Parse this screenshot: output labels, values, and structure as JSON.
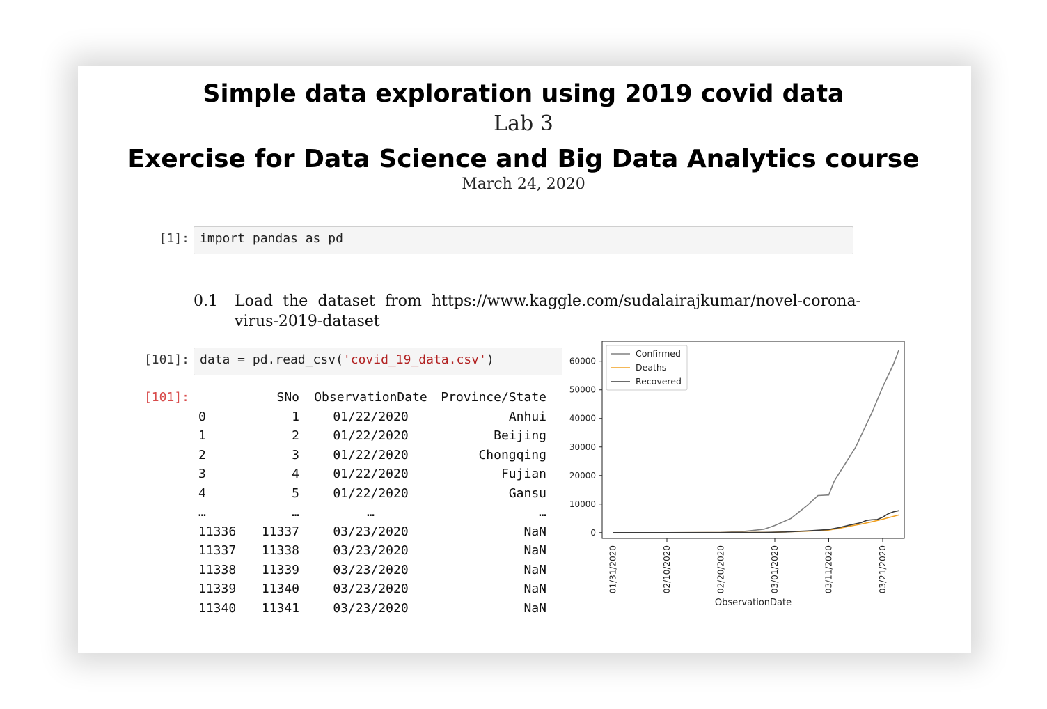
{
  "header": {
    "title": "Simple data exploration using 2019 covid data",
    "subtitle": "Lab 3",
    "course": "Exercise for Data Science and Big Data Analytics course",
    "date": "March 24, 2020"
  },
  "cell1": {
    "prompt": "[1]:",
    "code": "import pandas as pd"
  },
  "section": {
    "number": "0.1",
    "text": "Load the dataset from https://www.kaggle.com/sudalairajkumar/novel-corona-virus-2019-dataset"
  },
  "cell2": {
    "prompt": "[101]:",
    "code_prefix": "data = pd.read_csv(",
    "code_string": "'covid_19_data.csv'",
    "code_suffix": ")",
    "out_prompt": "[101]:"
  },
  "dataframe": {
    "columns": [
      "SNo",
      "ObservationDate",
      "Province/State"
    ],
    "rows": [
      {
        "idx": "0",
        "sno": "1",
        "date": "01/22/2020",
        "prov": "Anhui"
      },
      {
        "idx": "1",
        "sno": "2",
        "date": "01/22/2020",
        "prov": "Beijing"
      },
      {
        "idx": "2",
        "sno": "3",
        "date": "01/22/2020",
        "prov": "Chongqing"
      },
      {
        "idx": "3",
        "sno": "4",
        "date": "01/22/2020",
        "prov": "Fujian"
      },
      {
        "idx": "4",
        "sno": "5",
        "date": "01/22/2020",
        "prov": "Gansu"
      },
      {
        "idx": "…",
        "sno": "…",
        "date": "…",
        "prov": "…"
      },
      {
        "idx": "11336",
        "sno": "11337",
        "date": "03/23/2020",
        "prov": "NaN"
      },
      {
        "idx": "11337",
        "sno": "11338",
        "date": "03/23/2020",
        "prov": "NaN"
      },
      {
        "idx": "11338",
        "sno": "11339",
        "date": "03/23/2020",
        "prov": "NaN"
      },
      {
        "idx": "11339",
        "sno": "11340",
        "date": "03/23/2020",
        "prov": "NaN"
      },
      {
        "idx": "11340",
        "sno": "11341",
        "date": "03/23/2020",
        "prov": "NaN"
      }
    ]
  },
  "chart_data": {
    "type": "line",
    "xlabel": "ObservationDate",
    "ylabel": "",
    "ylim": [
      -2000,
      67000
    ],
    "yticks": [
      0,
      10000,
      20000,
      30000,
      40000,
      50000,
      60000
    ],
    "xlim": [
      -2,
      54
    ],
    "xtick_positions": [
      0,
      10,
      20,
      30,
      40,
      50
    ],
    "xtick_labels": [
      "01/31/2020",
      "02/10/2020",
      "02/20/2020",
      "03/01/2020",
      "03/11/2020",
      "03/21/2020"
    ],
    "legend_position": "top-left",
    "series": [
      {
        "name": "Confirmed",
        "color": "#808080",
        "x": [
          0,
          10,
          20,
          24,
          28,
          30,
          33,
          36,
          38,
          40,
          41,
          42,
          43,
          44,
          45,
          46,
          48,
          50,
          52,
          53
        ],
        "y": [
          0,
          0,
          100,
          400,
          1200,
          2500,
          5000,
          9500,
          13000,
          13200,
          18000,
          21000,
          24000,
          27000,
          30000,
          34000,
          42000,
          51000,
          59000,
          64000
        ]
      },
      {
        "name": "Deaths",
        "color": "#f0a020",
        "x": [
          0,
          10,
          20,
          28,
          32,
          36,
          40,
          42,
          44,
          46,
          48,
          50,
          52,
          53
        ],
        "y": [
          0,
          0,
          20,
          100,
          250,
          500,
          900,
          1500,
          2300,
          3000,
          3800,
          4700,
          5700,
          6200
        ]
      },
      {
        "name": "Recovered",
        "color": "#3a3a3a",
        "x": [
          0,
          10,
          20,
          28,
          32,
          36,
          40,
          42,
          44,
          46,
          47,
          48,
          49,
          50,
          51,
          52,
          53
        ],
        "y": [
          0,
          0,
          10,
          80,
          250,
          600,
          1100,
          1800,
          2700,
          3500,
          4300,
          4500,
          4600,
          5400,
          6600,
          7300,
          7700
        ]
      }
    ]
  }
}
